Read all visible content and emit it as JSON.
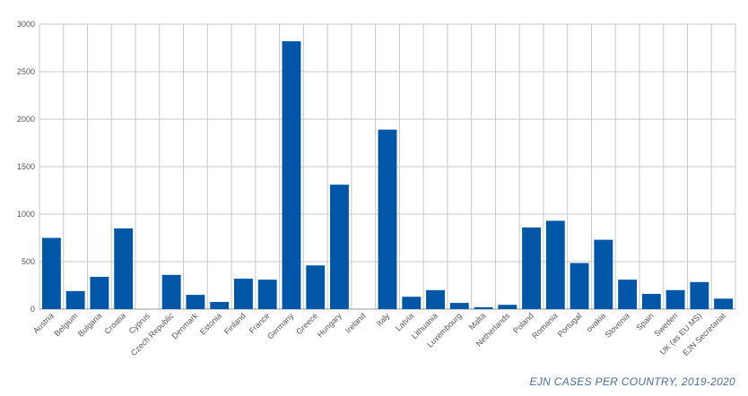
{
  "caption": "EJN CASES PER COUNTRY, 2019-2020",
  "colors": {
    "bar": "#0057a8",
    "grid": "#c8c8c8",
    "axis": "#999999"
  },
  "chart_data": {
    "type": "bar",
    "title": "EJN CASES PER COUNTRY, 2019-2020",
    "xlabel": "",
    "ylabel": "",
    "ylim": [
      0,
      3000
    ],
    "yticks": [
      0,
      500,
      1000,
      1500,
      2000,
      2500,
      3000
    ],
    "grid": true,
    "categories": [
      "Austria",
      "Belgium",
      "Bulgaria",
      "Croatia",
      "Cyprus",
      "Czech Republic",
      "Denmark",
      "Estonia",
      "Finland",
      "France",
      "Germany",
      "Greece",
      "Hungary",
      "Ireland",
      "Italy",
      "Latvia",
      "Lithuania",
      "Luxembourg",
      "Malta",
      "Netherlands",
      "Poland",
      "Romania",
      "Portugal",
      "ovakia",
      "Slovenia",
      "Spain",
      "Sweden",
      "UK (as EU MS)",
      "EJN Secretariat"
    ],
    "values": [
      750,
      190,
      340,
      850,
      0,
      360,
      150,
      75,
      320,
      310,
      2820,
      460,
      1310,
      0,
      1890,
      130,
      200,
      65,
      20,
      45,
      860,
      930,
      485,
      730,
      310,
      160,
      200,
      285,
      110
    ]
  }
}
